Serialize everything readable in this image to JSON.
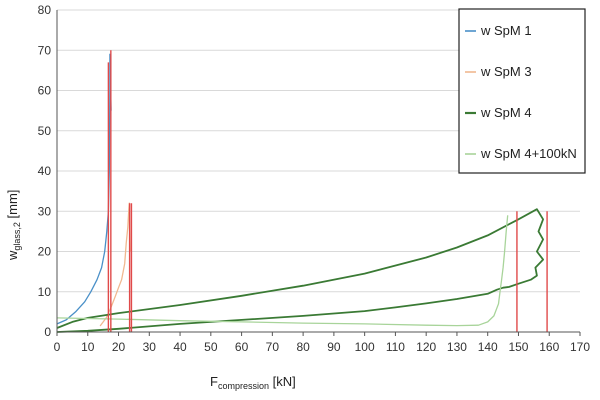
{
  "chart_data": {
    "type": "line",
    "xlabel": {
      "main": "F",
      "sub": "compression",
      "unit": " [kN]"
    },
    "ylabel": {
      "main": "w",
      "sub": "glass,2",
      "unit": " [mm]"
    },
    "xlim": [
      0,
      170
    ],
    "ylim": [
      0,
      80
    ],
    "xticks": [
      0,
      10,
      20,
      30,
      40,
      50,
      60,
      70,
      80,
      90,
      100,
      110,
      120,
      130,
      140,
      150,
      160,
      170
    ],
    "yticks": [
      0,
      10,
      20,
      30,
      40,
      50,
      60,
      70,
      80
    ],
    "grid": {
      "horizontal": true,
      "vertical": false
    },
    "legend_position": "top-right",
    "series": [
      {
        "name": "w SpM 1",
        "color": "#4a90c8",
        "points": [
          [
            0,
            2
          ],
          [
            3,
            3
          ],
          [
            6,
            5
          ],
          [
            9,
            7.5
          ],
          [
            11,
            10
          ],
          [
            13,
            13
          ],
          [
            14.5,
            16
          ],
          [
            15.5,
            20
          ],
          [
            16.2,
            25
          ],
          [
            16.7,
            30
          ],
          [
            17,
            40
          ],
          [
            17.1,
            50
          ],
          [
            17.2,
            60
          ],
          [
            17.2,
            69
          ],
          [
            17.4,
            62
          ],
          [
            17.6,
            55
          ]
        ]
      },
      {
        "name": "w SpM 3",
        "color": "#f0b890",
        "points": [
          [
            14,
            1.5
          ],
          [
            16,
            3.5
          ],
          [
            17.5,
            6
          ],
          [
            19,
            9
          ],
          [
            20,
            11
          ],
          [
            21,
            13
          ],
          [
            22,
            17
          ],
          [
            22.5,
            22
          ],
          [
            23,
            26
          ],
          [
            23.3,
            30
          ],
          [
            23.5,
            32
          ],
          [
            23.6,
            26
          ],
          [
            23.8,
            20
          ]
        ]
      },
      {
        "name": "w SpM 4",
        "color": "#3a7a34",
        "points": [
          [
            0,
            1
          ],
          [
            5,
            2.5
          ],
          [
            10,
            3.5
          ],
          [
            20,
            4.7
          ],
          [
            40,
            6.7
          ],
          [
            60,
            9
          ],
          [
            80,
            11.5
          ],
          [
            100,
            14.5
          ],
          [
            120,
            18.5
          ],
          [
            130,
            21
          ],
          [
            140,
            24
          ],
          [
            150,
            28
          ],
          [
            156,
            30.5
          ],
          [
            158,
            28
          ],
          [
            156.5,
            25
          ],
          [
            158,
            23
          ],
          [
            156,
            20
          ],
          [
            158,
            18
          ],
          [
            155.5,
            16
          ],
          [
            156,
            14
          ],
          [
            154,
            13
          ],
          [
            150,
            12
          ],
          [
            147,
            11.2
          ],
          [
            145,
            11
          ],
          [
            143,
            10.5
          ],
          [
            140,
            9.5
          ],
          [
            130,
            8.2
          ],
          [
            120,
            7.1
          ],
          [
            110,
            6.1
          ],
          [
            100,
            5.2
          ],
          [
            80,
            4
          ],
          [
            60,
            3
          ],
          [
            40,
            2
          ],
          [
            20,
            0.8
          ],
          [
            10,
            0.3
          ],
          [
            0,
            0
          ]
        ]
      },
      {
        "name": "w SpM 4+100kN",
        "color": "#a8d49a",
        "points": [
          [
            0,
            3.5
          ],
          [
            20,
            3.2
          ],
          [
            40,
            2.8
          ],
          [
            60,
            2.5
          ],
          [
            80,
            2.2
          ],
          [
            100,
            2
          ],
          [
            120,
            1.7
          ],
          [
            130,
            1.6
          ],
          [
            137,
            1.7
          ],
          [
            140,
            2.5
          ],
          [
            142,
            4
          ],
          [
            143.5,
            7
          ],
          [
            144,
            10
          ],
          [
            144.5,
            13
          ],
          [
            145,
            16
          ],
          [
            145.5,
            20
          ],
          [
            146,
            25
          ],
          [
            146.5,
            29
          ]
        ]
      }
    ],
    "vertical_markers": {
      "color": "#e04a4a",
      "lines": [
        {
          "x": 16.7,
          "y": 67
        },
        {
          "x": 17.5,
          "y": 70
        },
        {
          "x": 23.6,
          "y": 32
        },
        {
          "x": 24.2,
          "y": 32
        },
        {
          "x": 149.5,
          "y": 30
        },
        {
          "x": 159.3,
          "y": 30
        }
      ]
    }
  }
}
